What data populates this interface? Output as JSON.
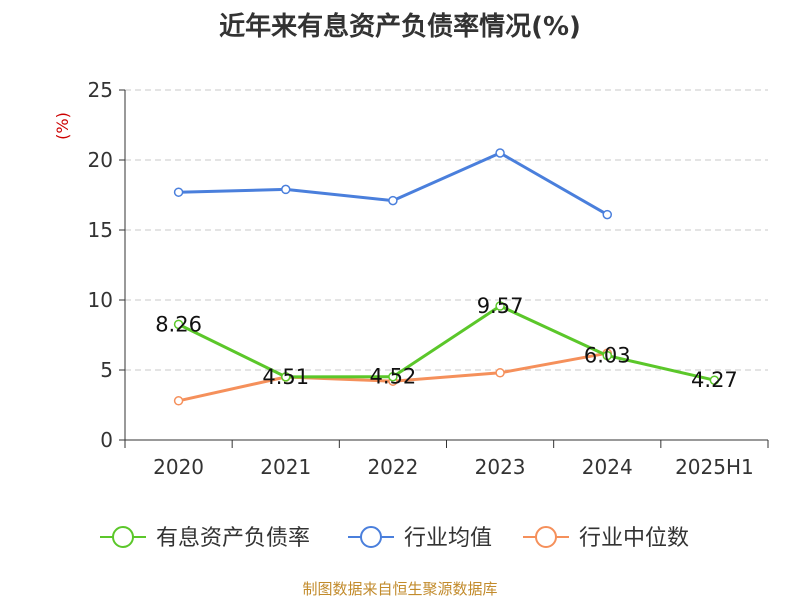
{
  "chart_data": {
    "type": "line",
    "title": "近年来有息资产负债率情况(%)",
    "ylabel": "(%)",
    "xlabel": "",
    "categories": [
      "2020",
      "2021",
      "2022",
      "2023",
      "2024",
      "2025H1"
    ],
    "ylim": [
      0,
      25
    ],
    "yticks": [
      0,
      5,
      10,
      15,
      20,
      25
    ],
    "grid": "horizontal-dashed",
    "legend_position": "bottom",
    "series": [
      {
        "name": "有息资产负债率",
        "color": "#5bc72a",
        "values": [
          8.26,
          4.51,
          4.52,
          9.57,
          6.03,
          4.27
        ],
        "labels": [
          "8.26",
          "4.51",
          "4.52",
          "9.57",
          "6.03",
          "4.27"
        ]
      },
      {
        "name": "行业均值",
        "color": "#4a7fdc",
        "values": [
          17.7,
          17.9,
          17.1,
          20.5,
          16.1,
          null
        ]
      },
      {
        "name": "行业中位数",
        "color": "#f5905b",
        "values": [
          2.8,
          4.5,
          4.2,
          4.8,
          6.2,
          null
        ]
      }
    ]
  },
  "footer": {
    "source": "制图数据来自恒生聚源数据库"
  }
}
